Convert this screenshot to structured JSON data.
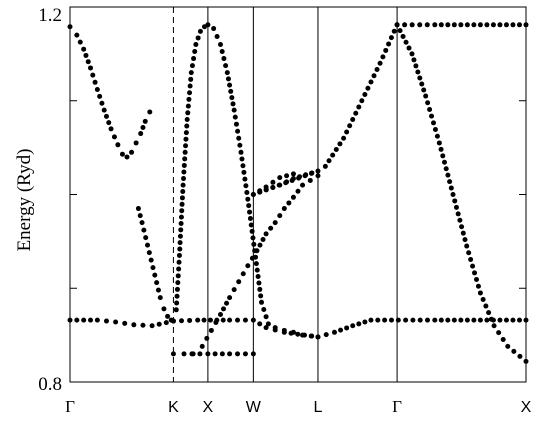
{
  "chart_data": {
    "type": "scatter",
    "title": "",
    "xlabel": "",
    "ylabel": "Energy (Ryd)",
    "ylim": [
      0.8,
      1.2
    ],
    "y_tick_labels": [
      "0.8",
      "1.2"
    ],
    "y_ticks": [
      0.8,
      0.9,
      1.0,
      1.1,
      1.2
    ],
    "x_path_labels": [
      "Γ",
      "K",
      "X",
      "W",
      "L",
      "Γ",
      "X"
    ],
    "x_path_positions": [
      0,
      0.2268,
      0.3024,
      0.4021,
      0.5438,
      0.7173,
      1.0
    ],
    "dashed_separators": [
      1
    ],
    "grid": false,
    "series": [
      {
        "points": [
          [
            0.0,
            1.179
          ],
          [
            0.015,
            1.17
          ],
          [
            0.03,
            1.155
          ],
          [
            0.045,
            1.135
          ],
          [
            0.06,
            1.112
          ],
          [
            0.075,
            1.09
          ],
          [
            0.09,
            1.07
          ],
          [
            0.105,
            1.053
          ],
          [
            0.115,
            1.043
          ],
          [
            0.125,
            1.04
          ],
          [
            0.135,
            1.045
          ],
          [
            0.145,
            1.055
          ],
          [
            0.155,
            1.065
          ],
          [
            0.165,
            1.078
          ],
          [
            0.175,
            1.088
          ]
        ]
      },
      {
        "points": [
          [
            0.15,
            0.985
          ],
          [
            0.158,
            0.97
          ],
          [
            0.166,
            0.954
          ],
          [
            0.174,
            0.938
          ],
          [
            0.182,
            0.922
          ],
          [
            0.19,
            0.906
          ],
          [
            0.198,
            0.89
          ],
          [
            0.206,
            0.878
          ],
          [
            0.214,
            0.87
          ],
          [
            0.222,
            0.866
          ],
          [
            0.2268,
            0.865
          ],
          [
            0.233,
            0.877
          ],
          [
            0.24,
            0.935
          ],
          [
            0.248,
            1.01
          ],
          [
            0.257,
            1.08
          ],
          [
            0.266,
            1.13
          ],
          [
            0.276,
            1.16
          ],
          [
            0.286,
            1.174
          ],
          [
            0.295,
            1.179
          ],
          [
            0.3024,
            1.181
          ],
          [
            0.315,
            1.177
          ],
          [
            0.33,
            1.16
          ],
          [
            0.345,
            1.13
          ],
          [
            0.36,
            1.09
          ],
          [
            0.375,
            1.045
          ],
          [
            0.39,
            0.995
          ],
          [
            0.405,
            0.94
          ],
          [
            0.42,
            0.885
          ],
          [
            0.435,
            0.862
          ],
          [
            0.45,
            0.858
          ],
          [
            0.47,
            0.855
          ],
          [
            0.49,
            0.853
          ],
          [
            0.51,
            0.85
          ],
          [
            0.53,
            0.849
          ],
          [
            0.5438,
            0.848
          ]
        ]
      },
      {
        "points": [
          [
            0.0,
            0.866
          ],
          [
            0.06,
            0.866
          ],
          [
            0.1,
            0.864
          ],
          [
            0.14,
            0.861
          ],
          [
            0.18,
            0.86
          ],
          [
            0.2268,
            0.865
          ],
          [
            0.28,
            0.866
          ],
          [
            0.35,
            0.866
          ],
          [
            0.4021,
            0.866
          ],
          [
            0.43,
            0.858
          ],
          [
            0.47,
            0.853
          ],
          [
            0.5438,
            0.848
          ],
          [
            0.58,
            0.853
          ],
          [
            0.62,
            0.86
          ],
          [
            0.66,
            0.866
          ],
          [
            0.72,
            0.866
          ],
          [
            0.8,
            0.866
          ],
          [
            1.0,
            0.866
          ]
        ]
      },
      {
        "points": [
          [
            0.27,
            0.83
          ],
          [
            0.29,
            0.838
          ],
          [
            0.31,
            0.855
          ],
          [
            0.33,
            0.872
          ],
          [
            0.35,
            0.89
          ],
          [
            0.37,
            0.907
          ],
          [
            0.39,
            0.924
          ],
          [
            0.41,
            0.94
          ],
          [
            0.43,
            0.958
          ],
          [
            0.45,
            0.97
          ],
          [
            0.47,
            0.985
          ],
          [
            0.49,
            0.997
          ],
          [
            0.51,
            1.01
          ],
          [
            0.5438,
            1.02
          ],
          [
            0.56,
            1.03
          ],
          [
            0.6,
            1.06
          ],
          [
            0.64,
            1.1
          ],
          [
            0.68,
            1.14
          ],
          [
            0.7173,
            1.181
          ],
          [
            0.8,
            1.181
          ],
          [
            1.0,
            1.181
          ]
        ]
      },
      {
        "points": [
          [
            0.4021,
            1.0
          ],
          [
            0.43,
            1.005
          ],
          [
            0.46,
            1.01
          ],
          [
            0.49,
            1.017
          ],
          [
            0.5438,
            1.025
          ],
          [
            0.4021,
            1.0
          ],
          [
            0.43,
            1.008
          ],
          [
            0.46,
            1.018
          ],
          [
            0.49,
            1.022
          ]
        ]
      },
      {
        "points": [
          [
            0.7173,
            1.181
          ],
          [
            0.75,
            1.15
          ],
          [
            0.78,
            1.105
          ],
          [
            0.81,
            1.055
          ],
          [
            0.84,
            1.0
          ],
          [
            0.87,
            0.945
          ],
          [
            0.9,
            0.895
          ],
          [
            0.93,
            0.86
          ],
          [
            0.96,
            0.838
          ],
          [
            1.0,
            0.822
          ]
        ]
      },
      {
        "points": [
          [
            0.2268,
            0.83
          ],
          [
            0.25,
            0.83
          ],
          [
            0.3024,
            0.83
          ],
          [
            0.35,
            0.83
          ],
          [
            0.4021,
            0.83
          ]
        ]
      }
    ]
  }
}
